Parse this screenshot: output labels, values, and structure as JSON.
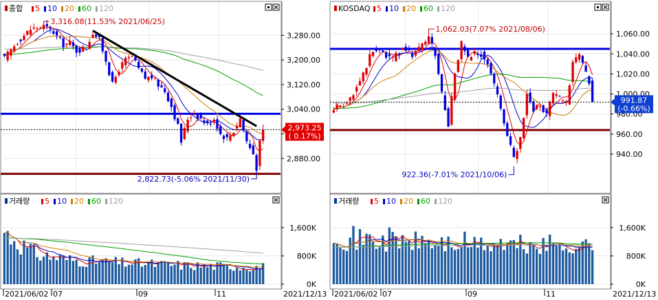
{
  "chart_data": [
    {
      "type": "candlestick",
      "panel": "price",
      "title": "종합",
      "ma_legend": [
        "5",
        "10",
        "20",
        "60",
        "120"
      ],
      "ylim": [
        2780,
        3350
      ],
      "yticks": [
        "3,280.00",
        "3,200.00",
        "3,120.00",
        "3,040.00",
        "2,960.00",
        "2,880.00"
      ],
      "ytick_values": [
        3280,
        3200,
        3120,
        3040,
        2960,
        2880
      ],
      "current": {
        "value": "2,973.25",
        "change": "( 0.17%)",
        "y": 2973.25
      },
      "high_note": {
        "text": "3,316.08(11.53% 2021/06/25)",
        "y": 3316.08
      },
      "low_note": {
        "text": "2,822.73(-5.06% 2021/11/30)",
        "y": 2822.73
      },
      "hlines": [
        {
          "y": 3025,
          "color": "#0000e6"
        },
        {
          "y": 2830,
          "color": "#7a0000"
        }
      ],
      "trendline": {
        "from": [
          27,
          3295
        ],
        "to": [
          77,
          2985
        ]
      },
      "n": 80,
      "start": 3205,
      "pts": [
        [
          0,
          3205
        ],
        [
          4,
          3260
        ],
        [
          8,
          3300
        ],
        [
          12,
          3310
        ],
        [
          15,
          3290
        ],
        [
          18,
          3250
        ],
        [
          20,
          3255
        ],
        [
          22,
          3230
        ],
        [
          25,
          3240
        ],
        [
          27,
          3290
        ],
        [
          29,
          3265
        ],
        [
          31,
          3200
        ],
        [
          33,
          3120
        ],
        [
          35,
          3170
        ],
        [
          37,
          3200
        ],
        [
          39,
          3210
        ],
        [
          41,
          3170
        ],
        [
          43,
          3140
        ],
        [
          45,
          3145
        ],
        [
          47,
          3120
        ],
        [
          49,
          3100
        ],
        [
          51,
          3050
        ],
        [
          53,
          2985
        ],
        [
          54,
          2935
        ],
        [
          56,
          3010
        ],
        [
          58,
          3030
        ],
        [
          60,
          3010
        ],
        [
          62,
          2990
        ],
        [
          64,
          3010
        ],
        [
          66,
          2960
        ],
        [
          68,
          2945
        ],
        [
          70,
          2970
        ],
        [
          72,
          3010
        ],
        [
          74,
          2935
        ],
        [
          76,
          2895
        ],
        [
          77,
          2850
        ],
        [
          78,
          2930
        ],
        [
          79,
          2973
        ]
      ],
      "ma_colors": {
        "5": "#e00000",
        "10": "#0000c8",
        "20": "#d08000",
        "60": "#00a000",
        "120": "#a0a0a0"
      }
    },
    {
      "type": "bar",
      "panel": "volume",
      "title": "거래량",
      "ma_legend": [
        "5",
        "10",
        "20",
        "60",
        "120"
      ],
      "ylim": [
        0,
        2200
      ],
      "yticks": [
        "1,600K",
        "800K",
        "0K"
      ],
      "ytick_values": [
        1600,
        800,
        0
      ],
      "x_labels": [
        "2021/06/02",
        "07",
        "09",
        "11",
        "2021/12/13"
      ],
      "base": [
        1450,
        1380,
        1300,
        1250,
        1180,
        1100,
        1050,
        980,
        930,
        880,
        840,
        800,
        790,
        780,
        760,
        750,
        740,
        720,
        700,
        690,
        680,
        670,
        660,
        650,
        650,
        640,
        640,
        630,
        630,
        620,
        620,
        610,
        600,
        600,
        600,
        600,
        590,
        590,
        580,
        580,
        580,
        570,
        570,
        560,
        560,
        560,
        550,
        550,
        550,
        540,
        540,
        530,
        530,
        530,
        520,
        520,
        520,
        520,
        510,
        510,
        510,
        510,
        500,
        500,
        500,
        500,
        500,
        490,
        490,
        490,
        490,
        490,
        480,
        480,
        480,
        480,
        480,
        480,
        480,
        480
      ]
    },
    {
      "type": "candlestick",
      "panel": "price",
      "title": "KOSDAQ",
      "ma_legend": [
        "5",
        "10",
        "20",
        "60",
        "120"
      ],
      "ylim": [
        905,
        1080
      ],
      "yticks": [
        "1,060.00",
        "1,040.00",
        "1,020.00",
        "1,000.00",
        "980.00",
        "960.00",
        "940.00"
      ],
      "ytick_values": [
        1060,
        1040,
        1020,
        1000,
        980,
        960,
        940
      ],
      "current": {
        "value": "991.87",
        "change": "(-0.66%)",
        "y": 991.87
      },
      "high_note": {
        "text": "1,062.03(7.07% 2021/08/06)",
        "y": 1062.03
      },
      "low_note": {
        "text": "922.36(-7.01% 2021/10/06)",
        "y": 922.36
      },
      "hlines": [
        {
          "y": 1045,
          "color": "#0000e6"
        },
        {
          "y": 964,
          "color": "#7a0000"
        }
      ],
      "n": 80,
      "start": 985,
      "pts": [
        [
          0,
          985
        ],
        [
          3,
          990
        ],
        [
          6,
          1000
        ],
        [
          9,
          1020
        ],
        [
          12,
          1045
        ],
        [
          15,
          1040
        ],
        [
          18,
          1035
        ],
        [
          21,
          1045
        ],
        [
          24,
          1040
        ],
        [
          27,
          1050
        ],
        [
          29,
          1055
        ],
        [
          31,
          1040
        ],
        [
          33,
          1000
        ],
        [
          35,
          970
        ],
        [
          37,
          1020
        ],
        [
          39,
          1050
        ],
        [
          41,
          1035
        ],
        [
          43,
          1040
        ],
        [
          45,
          1040
        ],
        [
          47,
          1030
        ],
        [
          49,
          1010
        ],
        [
          51,
          985
        ],
        [
          53,
          960
        ],
        [
          55,
          935
        ],
        [
          57,
          955
        ],
        [
          59,
          1000
        ],
        [
          61,
          985
        ],
        [
          63,
          990
        ],
        [
          65,
          980
        ],
        [
          67,
          1000
        ],
        [
          69,
          995
        ],
        [
          71,
          990
        ],
        [
          73,
          1030
        ],
        [
          75,
          1040
        ],
        [
          77,
          1020
        ],
        [
          79,
          1005
        ],
        [
          80,
          980
        ],
        [
          81,
          990
        ]
      ],
      "ma_colors": {
        "5": "#e00000",
        "10": "#0000c8",
        "20": "#d08000",
        "60": "#00a000",
        "120": "#a0a0a0"
      }
    },
    {
      "type": "bar",
      "panel": "volume",
      "title": "거래량",
      "ma_legend": [
        "5",
        "10",
        "20",
        "60",
        "120"
      ],
      "ylim": [
        0,
        2200
      ],
      "yticks": [
        "1,600K",
        "800K",
        "0K"
      ],
      "ytick_values": [
        1600,
        800,
        0
      ],
      "x_labels": [
        "2021/06/02",
        "07",
        "09",
        "11",
        "2021/12/13"
      ],
      "base": [
        1500,
        1450,
        1350,
        1300,
        1250,
        1250,
        1300,
        1250,
        1200,
        1250,
        1300,
        1200,
        1250,
        1200,
        1150,
        1200,
        1200,
        1250,
        1300,
        1200,
        1150,
        1200,
        1150,
        1200,
        1100,
        1150,
        1200,
        1250,
        1150,
        1100,
        1100,
        1150,
        1100,
        1150,
        1100,
        1100,
        1150,
        1100,
        1050,
        1100,
        1150,
        1100,
        1050,
        1100,
        1150,
        1050,
        1100,
        1050,
        1100,
        1050,
        1100,
        1150,
        1100,
        1050,
        1050,
        1100,
        1050,
        1100,
        1050,
        1050,
        1100,
        1050,
        1100,
        1050,
        1050,
        1050,
        1100,
        1050,
        1050,
        1100,
        1100,
        1050,
        1050,
        1100,
        1050,
        1050,
        1100,
        1050,
        1050,
        1050
      ]
    }
  ]
}
